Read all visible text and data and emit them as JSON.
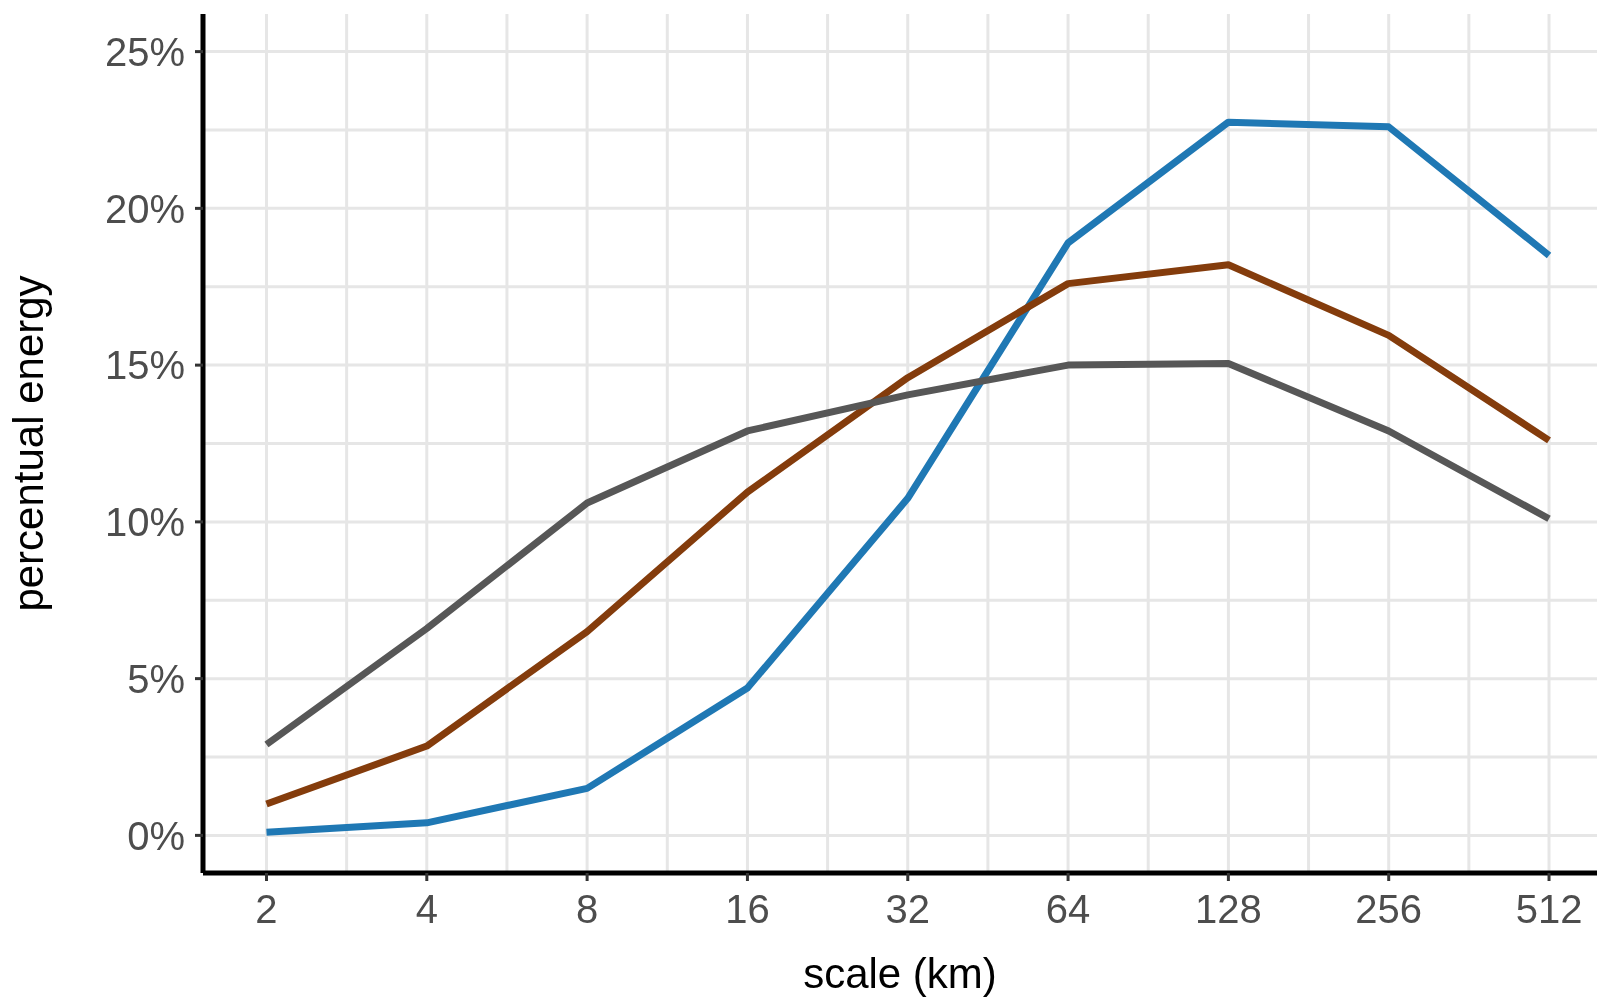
{
  "chart_data": {
    "type": "line",
    "xlabel": "scale (km)",
    "ylabel": "percentual energy",
    "x": [
      2,
      4,
      8,
      16,
      32,
      64,
      128,
      256,
      512
    ],
    "xlim": [
      1.52,
      630
    ],
    "xticks": [
      2,
      4,
      8,
      16,
      32,
      64,
      128,
      256,
      512
    ],
    "ylim": [
      -1.2,
      26.2
    ],
    "yticks": [
      {
        "value": 0,
        "label": "0%"
      },
      {
        "value": 5,
        "label": "5%"
      },
      {
        "value": 10,
        "label": "10%"
      },
      {
        "value": 15,
        "label": "15%"
      },
      {
        "value": 20,
        "label": "20%"
      },
      {
        "value": 25,
        "label": "25%"
      }
    ],
    "log": "x",
    "grid": true,
    "marker": "none",
    "line_style": "solid",
    "series": [
      {
        "color": "#1f78b4",
        "values": [
          0.1,
          0.4,
          1.5,
          4.7,
          10.75,
          18.9,
          22.75,
          22.6,
          18.5
        ]
      },
      {
        "color": "#843c0c",
        "values": [
          1.0,
          2.85,
          6.5,
          10.95,
          14.6,
          17.6,
          18.2,
          15.95,
          12.6
        ]
      },
      {
        "color": "#575757",
        "values": [
          2.9,
          6.6,
          10.6,
          12.9,
          14.05,
          15.0,
          15.05,
          12.9,
          10.1
        ]
      }
    ]
  }
}
